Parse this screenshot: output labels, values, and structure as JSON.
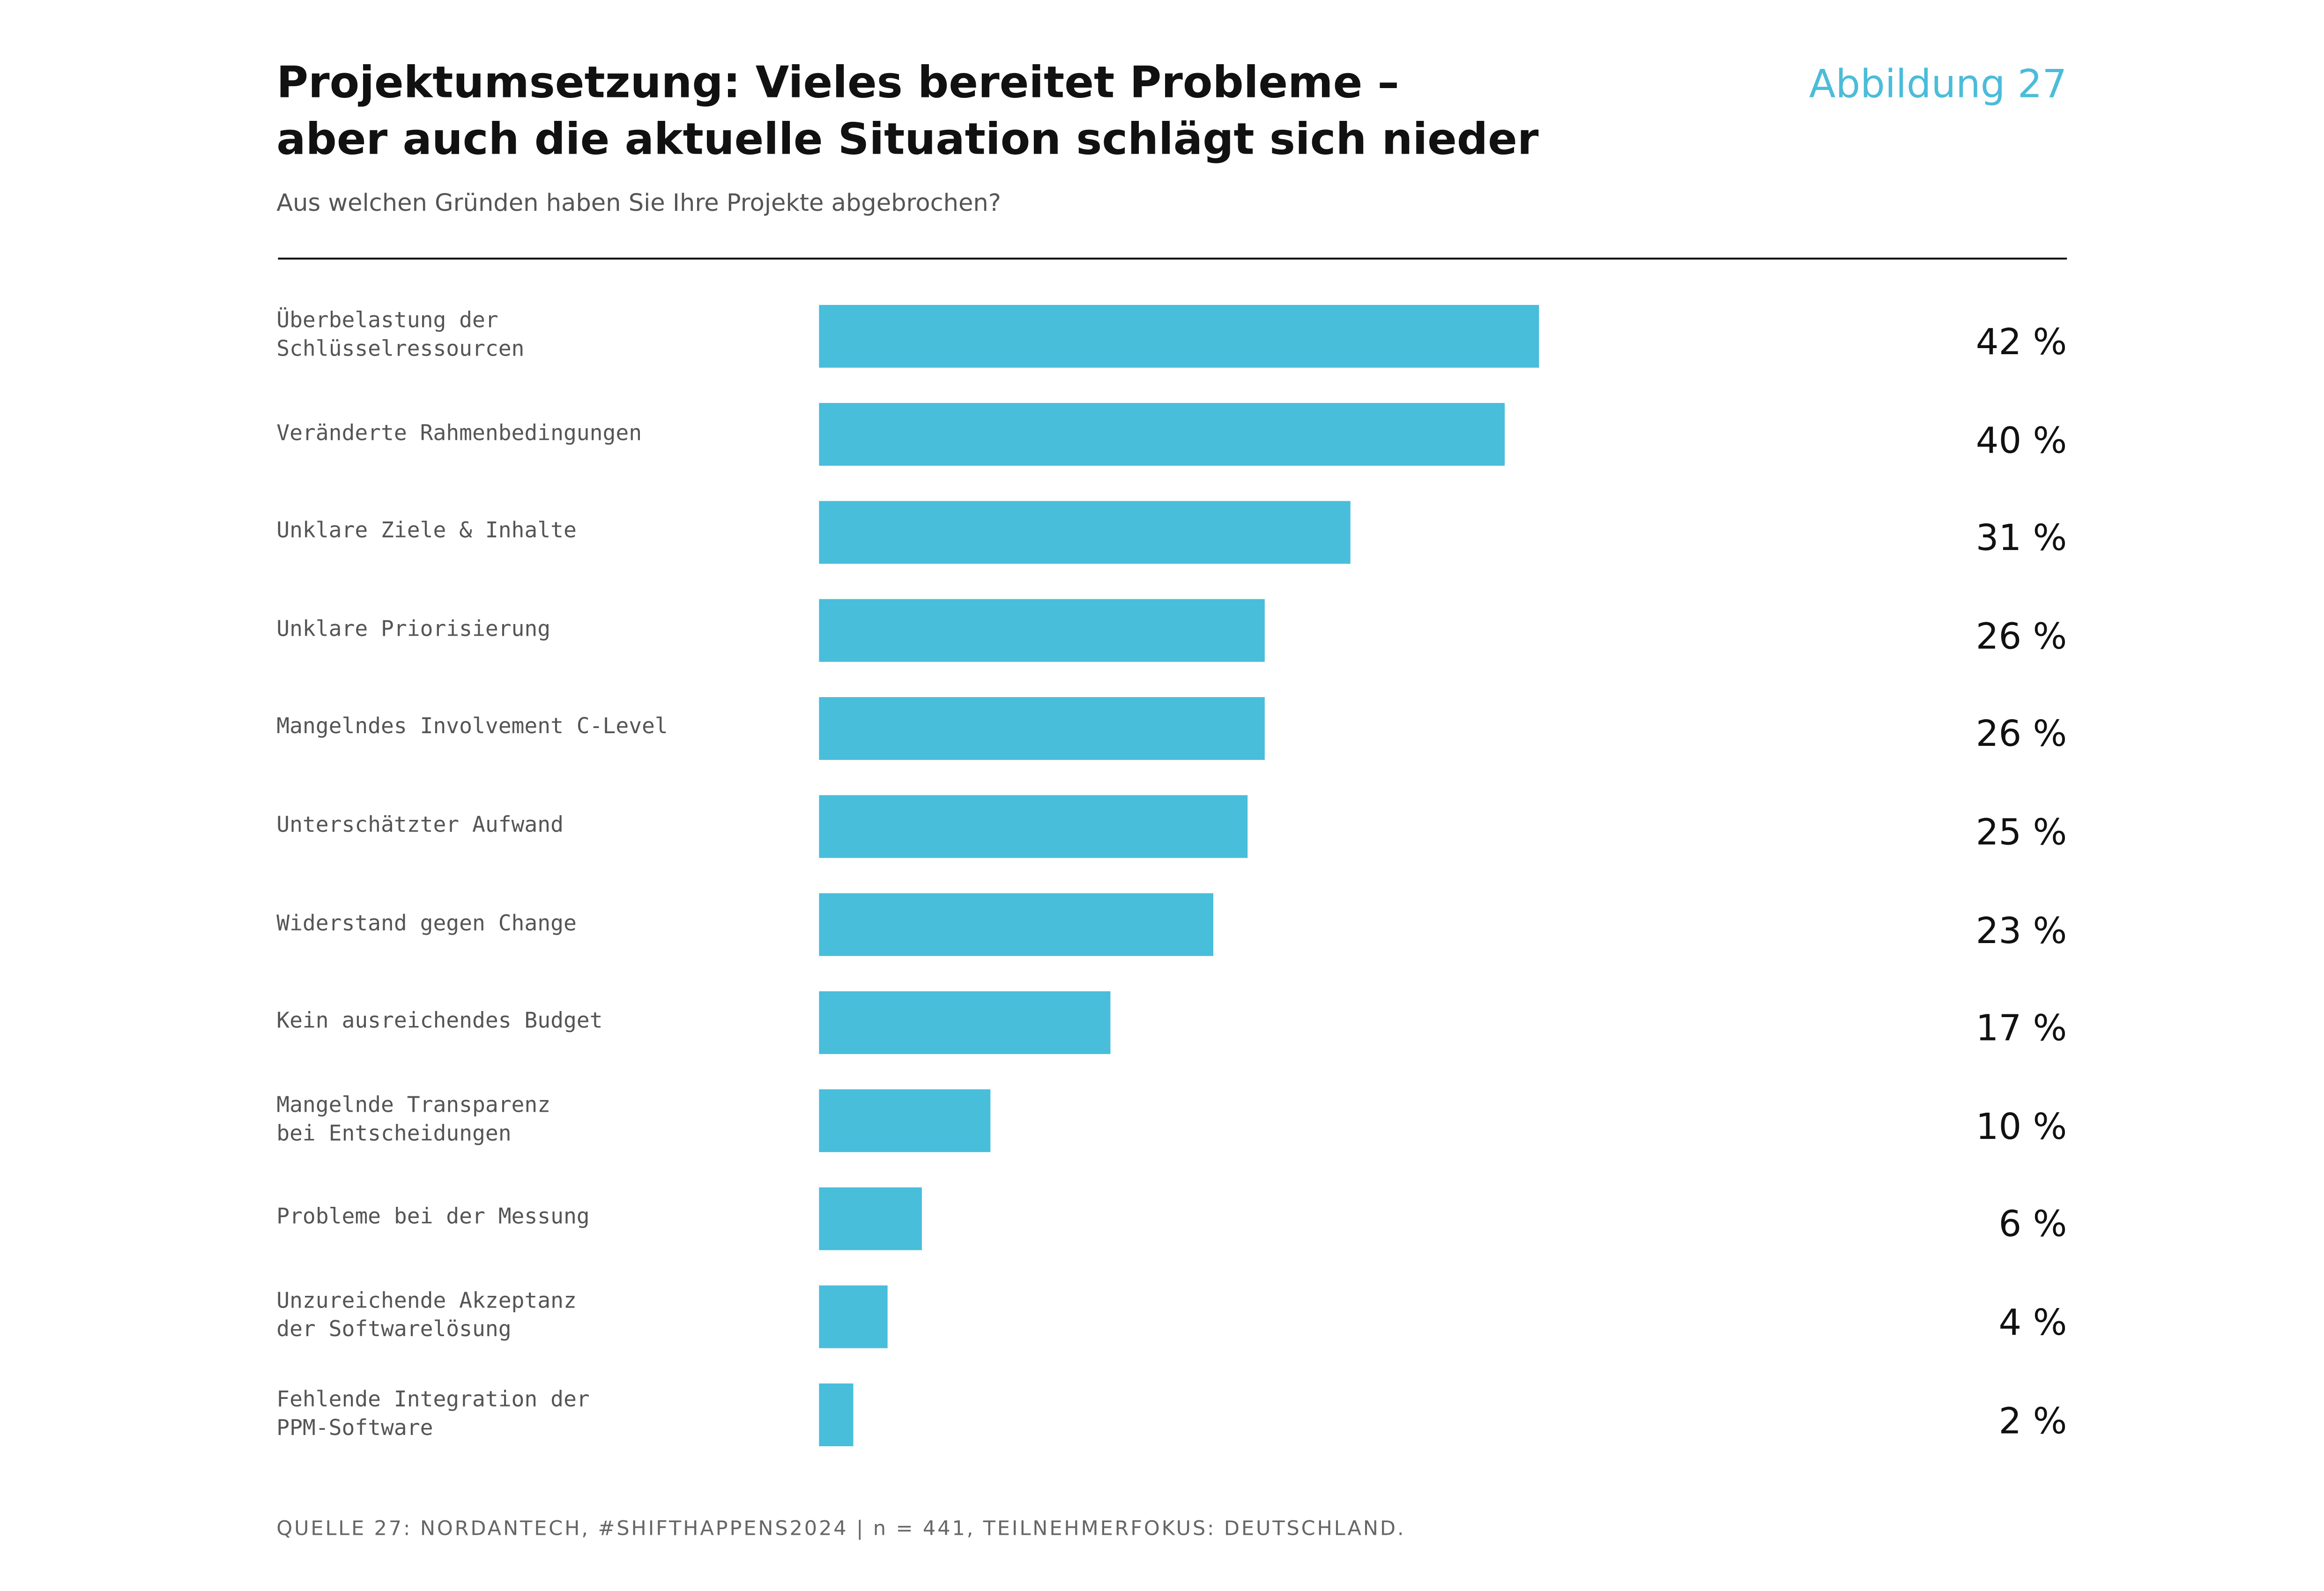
{
  "chart_data": {
    "type": "bar",
    "orientation": "horizontal",
    "title": "Projektumsetzung: Vieles bereitet Probleme –\naber auch die aktuelle Situation schlägt sich nieder",
    "figure_label": "Abbildung 27",
    "subtitle": "Aus welchen Gründen haben Sie Ihre Projekte abgebrochen?",
    "source": "QUELLE 27: NORDANTECH, #SHIFTHAPPENS2024 | n = 441, TEILNEHMERFOKUS: DEUTSCHLAND.",
    "categories": [
      "Überbelastung der\nSchlüsselressourcen",
      "Veränderte Rahmenbedingungen",
      "Unklare Ziele & Inhalte",
      "Unklare Priorisierung",
      "Mangelndes Involvement C-Level",
      "Unterschätzter Aufwand",
      "Widerstand gegen Change",
      "Kein ausreichendes Budget",
      "Mangelnde Transparenz\nbei Entscheidungen",
      "Probleme bei der Messung",
      "Unzureichende Akzeptanz\nder Softwarelösung",
      "Fehlende Integration der\nPPM-Software"
    ],
    "values": [
      42,
      40,
      31,
      26,
      26,
      25,
      23,
      17,
      10,
      6,
      4,
      2
    ],
    "value_labels": [
      "42 %",
      "40 %",
      "31 %",
      "26 %",
      "26 %",
      "25 %",
      "23 %",
      "17 %",
      "10 %",
      "6 %",
      "4 %",
      "2 %"
    ],
    "color": "#48bedb"
  }
}
